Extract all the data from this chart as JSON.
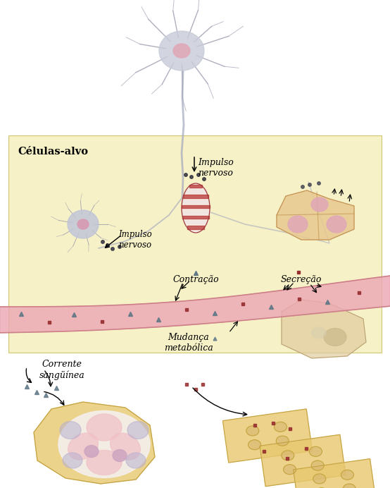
{
  "bg_color": "#ffffff",
  "yellow_box_color": "#f5f0c0",
  "title": "Células-alvo",
  "label_impulso_nervoso_top": "Impulso\nnervoso",
  "label_impulso_nervoso_cell": "Impulso\nnervoso",
  "label_contracao": "Contração",
  "label_secrecao": "Secreção",
  "label_mudanca": "Mudança\nmetabólica",
  "label_corrente": "Corrente\nsangüínea",
  "neuron_body_color": "#c8ccd8",
  "neuron_nucleus_color": "#e8b0b8",
  "axon_color": "#b0b4c4",
  "blood_vessel_color": "#e8a8b0",
  "marker_blue": "#607888",
  "marker_red": "#993030",
  "skin_color": "#e8c890",
  "bottom_cell1_color": "#e8c870"
}
